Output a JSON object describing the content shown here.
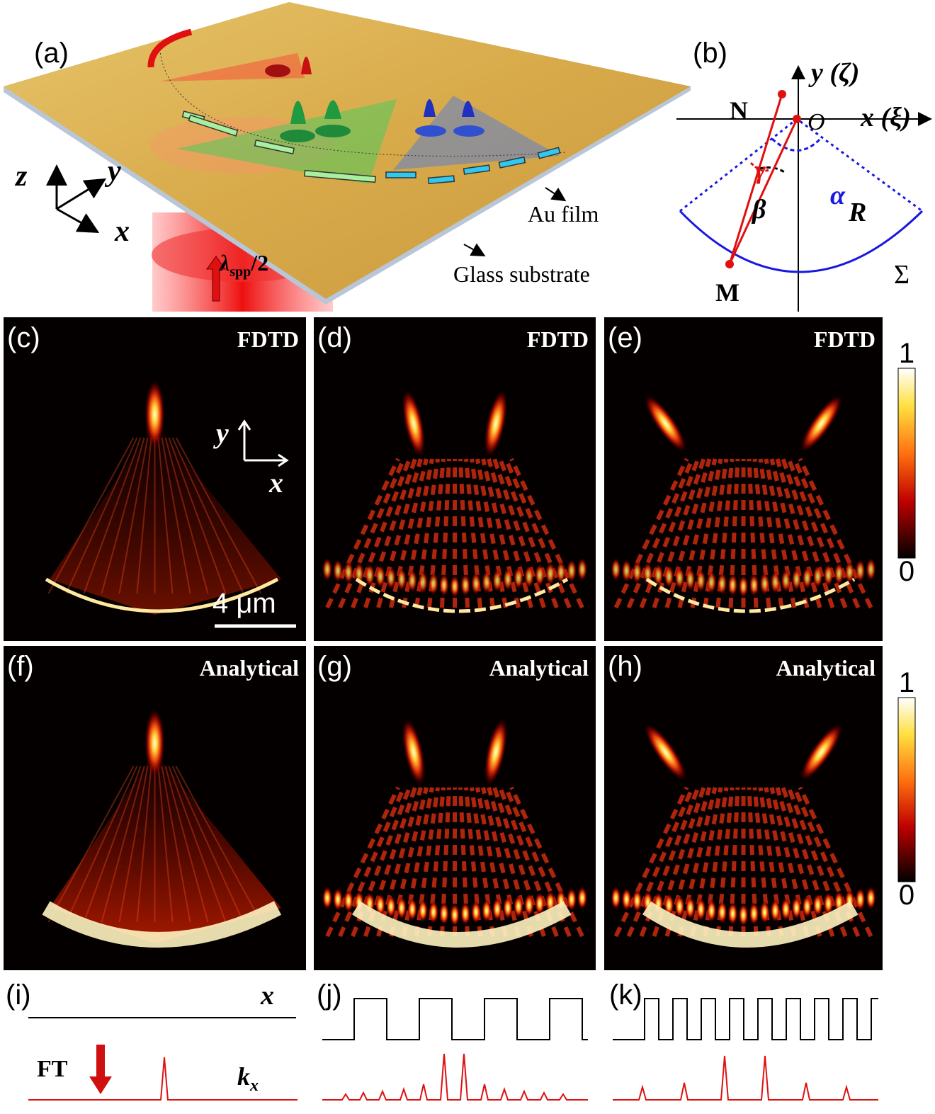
{
  "panel_a": {
    "label": "(a)",
    "axis_z": "z",
    "axis_y": "y",
    "axis_x": "x",
    "period_label": {
      "symbol": "λ",
      "subscript": "spp",
      "suffix": "/2"
    },
    "au_film": "Au film",
    "glass_substrate": "Glass substrate"
  },
  "panel_b": {
    "label": "(b)",
    "y_axis": "y (ζ)",
    "x_axis": "x (ξ)",
    "point_n": "N",
    "origin": "O",
    "point_m": "M",
    "alpha": "α",
    "beta": "β",
    "gamma": "γ",
    "radius": "R",
    "surface": "Σ"
  },
  "field_maps": {
    "fdtd": [
      {
        "label": "(c)",
        "method": "FDTD"
      },
      {
        "label": "(d)",
        "method": "FDTD"
      },
      {
        "label": "(e)",
        "method": "FDTD"
      }
    ],
    "analytical": [
      {
        "label": "(f)",
        "method": "Analytical"
      },
      {
        "label": "(g)",
        "method": "Analytical"
      },
      {
        "label": "(h)",
        "method": "Analytical"
      }
    ],
    "axis_y": "y",
    "axis_x": "x",
    "scale_bar": "4 μm",
    "colorbars": [
      {
        "max": 1,
        "min": 0
      },
      {
        "max": 1,
        "min": 0
      }
    ]
  },
  "spectra": {
    "panels": [
      {
        "label": "(i)"
      },
      {
        "label": "(j)"
      },
      {
        "label": "(k)"
      }
    ],
    "x_label": "x",
    "ft_label": "FT",
    "kx_label": {
      "symbol": "k",
      "subscript": "x"
    }
  }
}
